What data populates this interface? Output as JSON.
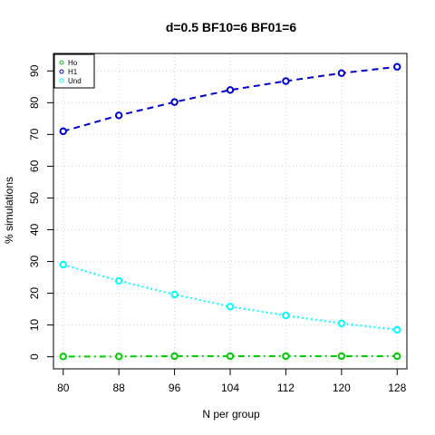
{
  "chart_data": {
    "type": "line",
    "title": "d=0.5 BF10=6 BF01=6",
    "xlabel": "N per group",
    "ylabel": "% simulations",
    "x": [
      80,
      88,
      96,
      104,
      112,
      120,
      128
    ],
    "x_ticks": [
      80,
      88,
      96,
      104,
      112,
      120,
      128
    ],
    "y_ticks": [
      0,
      10,
      20,
      30,
      40,
      50,
      60,
      70,
      80,
      90
    ],
    "xlim": [
      78.6,
      129.4
    ],
    "ylim": [
      -3.8,
      95.5
    ],
    "grid": true,
    "legend_position": "top-left",
    "series": [
      {
        "name": "Ho",
        "color": "#00cd00",
        "line_style": "dotdash",
        "values": [
          0.1,
          0.1,
          0.2,
          0.2,
          0.2,
          0.2,
          0.2
        ]
      },
      {
        "name": "H1",
        "color": "#0000cd",
        "line_style": "dashed",
        "values": [
          71.0,
          76.0,
          80.2,
          84.0,
          86.8,
          89.3,
          91.3
        ]
      },
      {
        "name": "Und",
        "color": "#00ffff",
        "line_style": "dotted",
        "values": [
          29.0,
          23.9,
          19.6,
          15.8,
          13.0,
          10.5,
          8.5
        ]
      }
    ]
  }
}
